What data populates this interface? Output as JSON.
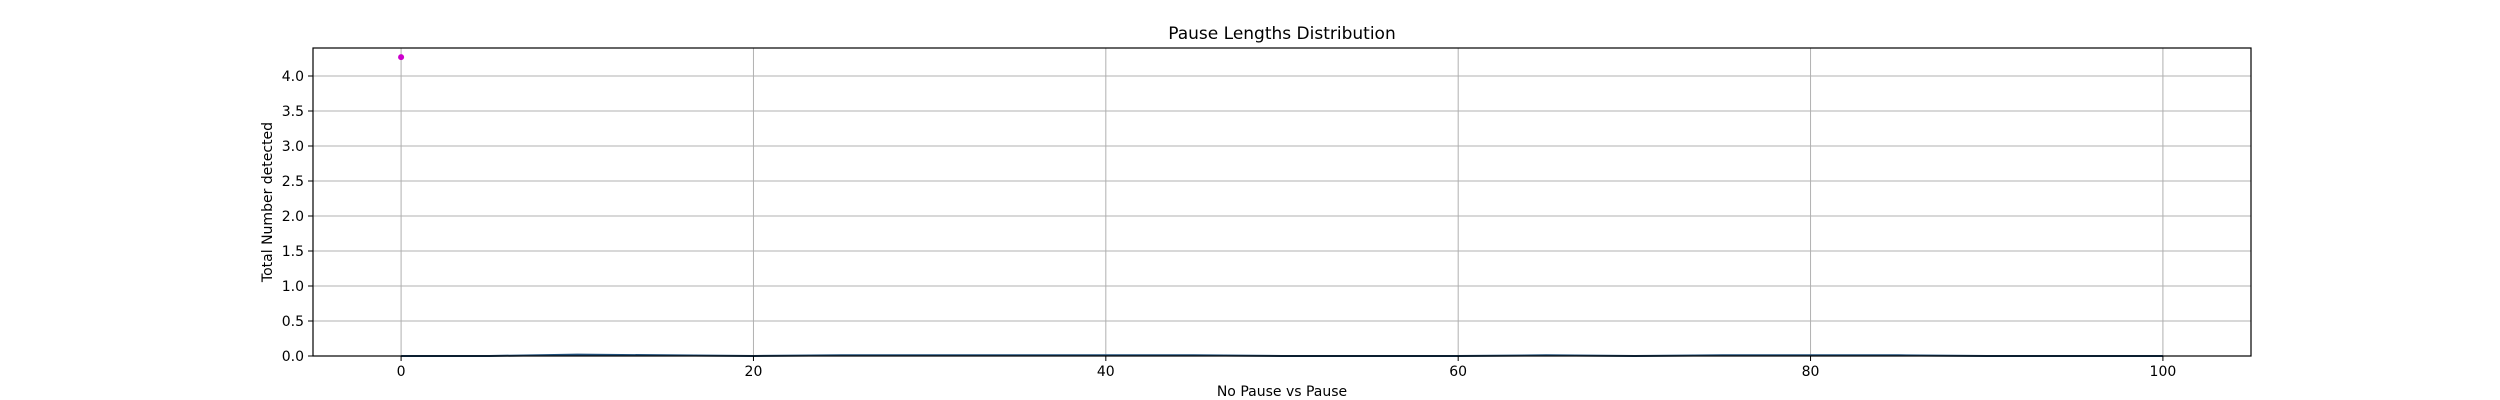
{
  "chart_data": {
    "type": "line",
    "title": "Pause Lengths Distribution",
    "xlabel": "No Pause vs Pause",
    "ylabel": "Total Number detected",
    "xlim": [
      -5,
      105
    ],
    "ylim": [
      0,
      4.4
    ],
    "xticks": [
      0,
      20,
      40,
      60,
      80,
      100
    ],
    "xtick_labels": [
      "0",
      "20",
      "40",
      "60",
      "80",
      "100"
    ],
    "yticks": [
      0.0,
      0.5,
      1.0,
      1.5,
      2.0,
      2.5,
      3.0,
      3.5,
      4.0
    ],
    "ytick_labels": [
      "0.0",
      "0.5",
      "1.0",
      "1.5",
      "2.0",
      "2.5",
      "3.0",
      "3.5",
      "4.0"
    ],
    "grid": true,
    "line_color": "#1f4e79",
    "marker_color": "#cc00cc",
    "series": [
      {
        "x": [
          0,
          5,
          10,
          15,
          20,
          25,
          30,
          35,
          40,
          45,
          50,
          55,
          60,
          65,
          70,
          75,
          80,
          85,
          90,
          95,
          100
        ],
        "values": [
          0,
          0,
          0.02,
          0.01,
          0,
          0.01,
          0.01,
          0.01,
          0.01,
          0.01,
          0,
          0,
          0,
          0.01,
          0,
          0.01,
          0.01,
          0.01,
          0,
          0,
          0
        ]
      }
    ],
    "points": [
      {
        "x": 0,
        "y": 4.27
      }
    ]
  }
}
